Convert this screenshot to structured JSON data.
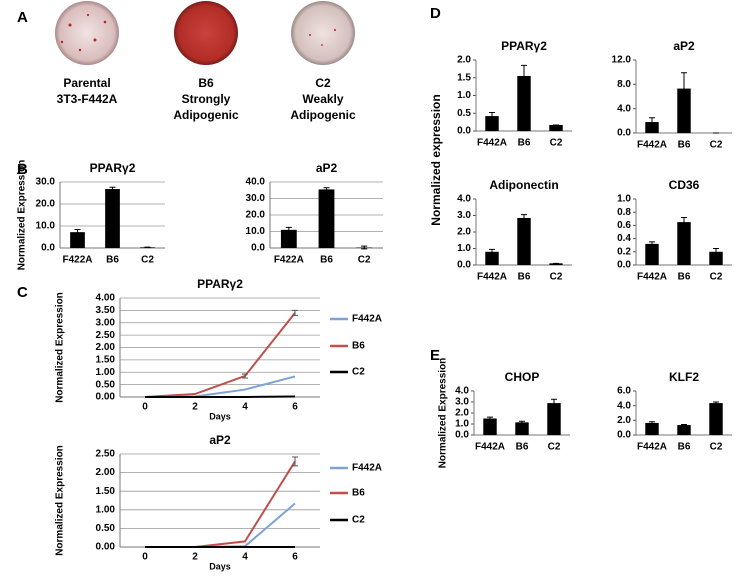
{
  "panel_letters": [
    "A",
    "B",
    "C",
    "D",
    "E"
  ],
  "dishes": [
    {
      "lines": [
        "Parental",
        "3T3-F442A"
      ]
    },
    {
      "lines": [
        "B6",
        "Strongly",
        "Adipogenic"
      ]
    },
    {
      "lines": [
        "C2",
        "Weakly",
        "Adipogenic"
      ]
    }
  ],
  "shared_labels": {
    "d_ylabel": "Normalized expression"
  },
  "chart_data": [
    {
      "type": "bar",
      "title": "PPARγ2",
      "ylabel": "Normalized Expression",
      "categories": [
        "F422A",
        "B6",
        "C2"
      ],
      "values": [
        7.2,
        26.8,
        0.3
      ],
      "errors": [
        1.2,
        0.8,
        0.1
      ],
      "color": "#000000",
      "ylim": [
        0,
        30
      ],
      "yticks": [
        {
          "value": 0,
          "label": "0.0"
        },
        {
          "value": 10,
          "label": "10.0"
        },
        {
          "value": 20,
          "label": "20.0"
        },
        {
          "value": 30,
          "label": "30.0"
        }
      ],
      "grid": true
    },
    {
      "type": "bar",
      "title": "aP2",
      "categories": [
        "F422A",
        "B6",
        "C2"
      ],
      "values": [
        11,
        35.5,
        0.3
      ],
      "errors": [
        1.5,
        1,
        0.8
      ],
      "color": "#000000",
      "ylim": [
        0,
        40
      ],
      "yticks": [
        {
          "value": 0,
          "label": "0.0"
        },
        {
          "value": 10,
          "label": "10.0"
        },
        {
          "value": 20,
          "label": "20.0"
        },
        {
          "value": 30,
          "label": "30.0"
        },
        {
          "value": 40,
          "label": "40.0"
        }
      ],
      "grid": true
    },
    {
      "type": "line",
      "title": "PPARγ2",
      "ylabel": "Normalized Expression",
      "xlabel": "Days",
      "categories": [
        "0",
        "2",
        "4",
        "6"
      ],
      "series": [
        {
          "name": "F442A",
          "color": "#7ba3d6",
          "values": [
            0,
            0.02,
            0.3,
            0.83
          ],
          "errors": [
            null,
            null,
            null,
            null
          ]
        },
        {
          "name": "B6",
          "color": "#c0504d",
          "values": [
            0,
            0.12,
            0.85,
            3.4
          ],
          "errors": [
            null,
            null,
            0.08,
            0.1
          ]
        },
        {
          "name": "C2",
          "color": "#000000",
          "values": [
            0,
            0,
            0,
            0.02
          ],
          "errors": [
            null,
            null,
            null,
            null
          ]
        }
      ],
      "ylim": [
        0,
        4
      ],
      "yticks": [
        {
          "value": 0,
          "label": "0.00"
        },
        {
          "value": 0.5,
          "label": "0.50"
        },
        {
          "value": 1,
          "label": "1.00"
        },
        {
          "value": 1.5,
          "label": "1.50"
        },
        {
          "value": 2,
          "label": "2.00"
        },
        {
          "value": 2.5,
          "label": "2.50"
        },
        {
          "value": 3,
          "label": "3.00"
        },
        {
          "value": 3.5,
          "label": "3.50"
        },
        {
          "value": 4,
          "label": "4.00"
        }
      ],
      "grid": true
    },
    {
      "type": "line",
      "title": "aP2",
      "ylabel": "Normalized Expression",
      "xlabel": "Days",
      "categories": [
        "0",
        "2",
        "4",
        "6"
      ],
      "series": [
        {
          "name": "F442A",
          "color": "#7ba3d6",
          "values": [
            0,
            0,
            0.02,
            1.17
          ],
          "errors": [
            null,
            null,
            null,
            null
          ]
        },
        {
          "name": "B6",
          "color": "#c0504d",
          "values": [
            0,
            0,
            0.15,
            2.3
          ],
          "errors": [
            null,
            null,
            null,
            0.12
          ]
        },
        {
          "name": "C2",
          "color": "#000000",
          "values": [
            0,
            0,
            0,
            0
          ],
          "errors": [
            null,
            null,
            null,
            null
          ]
        }
      ],
      "ylim": [
        0,
        2.5
      ],
      "yticks": [
        {
          "value": 0,
          "label": "0.00"
        },
        {
          "value": 0.5,
          "label": "0.50"
        },
        {
          "value": 1,
          "label": "1.00"
        },
        {
          "value": 1.5,
          "label": "1.50"
        },
        {
          "value": 2,
          "label": "2.00"
        },
        {
          "value": 2.5,
          "label": "2.50"
        }
      ],
      "grid": true
    },
    {
      "type": "bar",
      "title": "PPARγ2",
      "categories": [
        "F442A",
        "B6",
        "C2"
      ],
      "values": [
        0.42,
        1.55,
        0.17
      ],
      "errors": [
        0.1,
        0.3,
        0
      ],
      "color": "#000000",
      "ylim": [
        0,
        2
      ],
      "yticks": [
        {
          "value": 0,
          "label": "0.0"
        },
        {
          "value": 0.5,
          "label": "0.5"
        },
        {
          "value": 1,
          "label": "1.0"
        },
        {
          "value": 1.5,
          "label": "1.5"
        },
        {
          "value": 2,
          "label": "2.0"
        }
      ],
      "grid": false
    },
    {
      "type": "bar",
      "title": "aP2",
      "categories": [
        "F442A",
        "B6",
        "C2"
      ],
      "values": [
        1.8,
        7.3,
        0
      ],
      "errors": [
        0.7,
        2.6,
        0
      ],
      "color": "#000000",
      "ylim": [
        0,
        12
      ],
      "yticks": [
        {
          "value": 0,
          "label": "0.0"
        },
        {
          "value": 4,
          "label": "4.0"
        },
        {
          "value": 8,
          "label": "8.0"
        },
        {
          "value": 12,
          "label": "12.0"
        }
      ],
      "grid": false
    },
    {
      "type": "bar",
      "title": "Adiponectin",
      "categories": [
        "F442A",
        "B6",
        "C2"
      ],
      "values": [
        0.8,
        2.85,
        0.1
      ],
      "errors": [
        0.15,
        0.2,
        0
      ],
      "color": "#000000",
      "ylim": [
        0,
        4
      ],
      "yticks": [
        {
          "value": 0,
          "label": "0.0"
        },
        {
          "value": 1,
          "label": "1.0"
        },
        {
          "value": 2,
          "label": "2.0"
        },
        {
          "value": 3,
          "label": "3.0"
        },
        {
          "value": 4,
          "label": "4.0"
        }
      ],
      "grid": false
    },
    {
      "type": "bar",
      "title": "CD36",
      "categories": [
        "F442A",
        "B6",
        "C2"
      ],
      "values": [
        0.32,
        0.65,
        0.2
      ],
      "errors": [
        0.03,
        0.07,
        0.05
      ],
      "color": "#000000",
      "ylim": [
        0,
        1
      ],
      "yticks": [
        {
          "value": 0,
          "label": "0.0"
        },
        {
          "value": 0.2,
          "label": "0.2"
        },
        {
          "value": 0.4,
          "label": "0.4"
        },
        {
          "value": 0.6,
          "label": "0.6"
        },
        {
          "value": 0.8,
          "label": "0.8"
        },
        {
          "value": 1,
          "label": "1.0"
        }
      ],
      "grid": false
    },
    {
      "type": "bar",
      "title": "CHOP",
      "ylabel": "Normalized Expression",
      "categories": [
        "F442A",
        "B6",
        "C2"
      ],
      "values": [
        1.5,
        1.15,
        2.9
      ],
      "errors": [
        0.12,
        0.1,
        0.35
      ],
      "color": "#000000",
      "ylim": [
        0,
        4
      ],
      "yticks": [
        {
          "value": 0,
          "label": "0.0"
        },
        {
          "value": 1,
          "label": "1.0"
        },
        {
          "value": 2,
          "label": "2.0"
        },
        {
          "value": 3,
          "label": "3.0"
        },
        {
          "value": 4,
          "label": "4.0"
        }
      ],
      "grid": false
    },
    {
      "type": "bar",
      "title": "KLF2",
      "categories": [
        "F442A",
        "B6",
        "C2"
      ],
      "values": [
        1.65,
        1.35,
        4.35
      ],
      "errors": [
        0.15,
        0.08,
        0.15
      ],
      "color": "#000000",
      "ylim": [
        0,
        6
      ],
      "yticks": [
        {
          "value": 0,
          "label": "0.0"
        },
        {
          "value": 2,
          "label": "2.0"
        },
        {
          "value": 4,
          "label": "4.0"
        },
        {
          "value": 6,
          "label": "6.0"
        }
      ],
      "grid": false
    }
  ]
}
